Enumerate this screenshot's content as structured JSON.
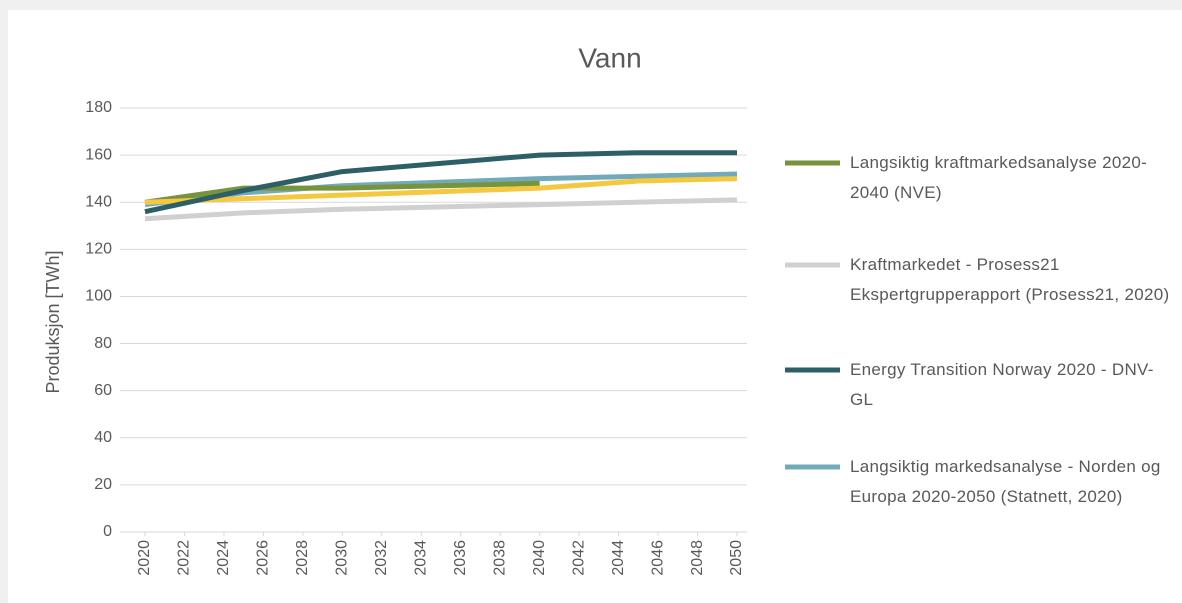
{
  "chart_data": {
    "type": "line",
    "title": "Vann",
    "y_label": "Produksjon [TWh]",
    "xlim": [
      2020,
      2050
    ],
    "xticks": [
      2020,
      2022,
      2024,
      2026,
      2028,
      2030,
      2032,
      2034,
      2036,
      2038,
      2040,
      2042,
      2044,
      2046,
      2048,
      2050
    ],
    "ylim": [
      0,
      180
    ],
    "yticks": [
      0,
      20,
      40,
      60,
      80,
      100,
      120,
      140,
      160,
      180
    ],
    "grid": true,
    "series": [
      {
        "name": "Langsiktig kraftmarkedsanalyse 2020-2040 (NVE)",
        "color": "#77933c",
        "x": [
          2020,
          2025,
          2030,
          2035,
          2040
        ],
        "values": [
          140,
          146,
          146,
          147,
          148
        ]
      },
      {
        "name": "Kraftmarkedet - Prosess21 Ekspertgrupperapport (Prosess21, 2020)",
        "color": "#d0d0d0",
        "x": [
          2020,
          2025,
          2030,
          2040,
          2050
        ],
        "values": [
          133,
          135.5,
          137,
          139,
          141
        ]
      },
      {
        "name": "Energy Transition Norway 2020 - DNV-GL",
        "color": "#2c5f66",
        "x": [
          2020,
          2025,
          2030,
          2040,
          2045,
          2050
        ],
        "values": [
          136,
          145,
          153,
          160,
          161,
          161
        ]
      },
      {
        "name": "Langsiktig markedsanalyse - Norden og Europa 2020-2050 (Statnett, 2020)",
        "color": "#72aab9",
        "x": [
          2020,
          2025,
          2030,
          2040,
          2050
        ],
        "values": [
          139,
          144,
          147,
          150,
          152
        ]
      },
      {
        "color": "#f5c842",
        "x": [
          2020,
          2030,
          2040,
          2045,
          2050
        ],
        "values": [
          140,
          143,
          146,
          149,
          150
        ]
      }
    ]
  }
}
